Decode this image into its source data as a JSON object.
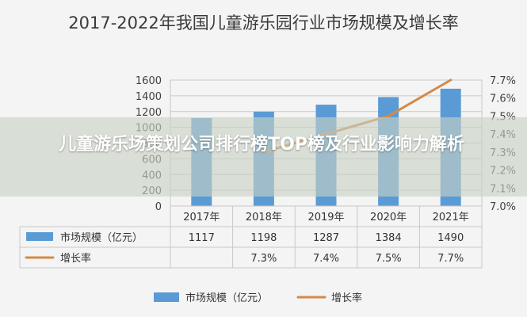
{
  "chart_data": {
    "type": "bar",
    "title": "2017-2022年我国儿童游乐园行业市场规模及增长率",
    "categories": [
      "2017年",
      "2018年",
      "2019年",
      "2020年",
      "2021年"
    ],
    "series": [
      {
        "name": "市场规模（亿元）",
        "type": "bar",
        "axis": "left",
        "values": [
          1117,
          1198,
          1287,
          1384,
          1490
        ],
        "value_labels": [
          "1117",
          "1198",
          "1287",
          "1384",
          "1490"
        ]
      },
      {
        "name": "增长率",
        "type": "line",
        "axis": "right",
        "values": [
          null,
          7.3,
          7.4,
          7.5,
          7.7
        ],
        "value_labels": [
          "",
          "7.3%",
          "7.4%",
          "7.5%",
          "7.7%"
        ]
      }
    ],
    "y_left": {
      "lim": [
        0,
        1600
      ],
      "ticks": [
        "0",
        "200",
        "400",
        "600",
        "800",
        "1000",
        "1200",
        "1400",
        "1600"
      ]
    },
    "y_right": {
      "lim": [
        7.0,
        7.7
      ],
      "ticks": [
        "7.0%",
        "7.1%",
        "7.2%",
        "7.3%",
        "7.4%",
        "7.5%",
        "7.6%",
        "7.7%"
      ]
    },
    "grid": true,
    "legend_position": "bottom",
    "data_table": true,
    "colors": {
      "bar": "#5b9bd5",
      "line": "#d28a4a"
    }
  },
  "overlay": {
    "text": "儿童游乐场策划公司排行榜TOP榜及行业影响力解析"
  }
}
